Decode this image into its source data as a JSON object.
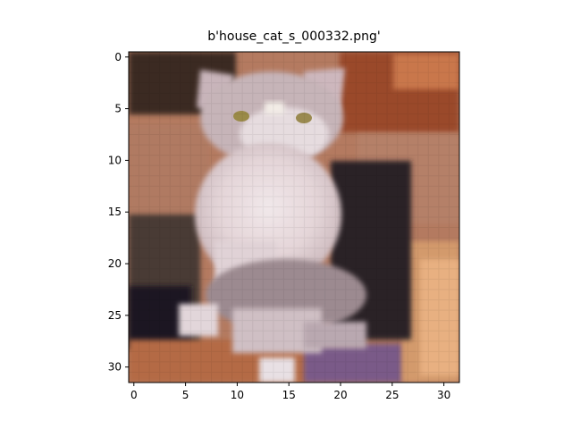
{
  "figure": {
    "title": "b'house_cat_s_000332.png'"
  },
  "image": {
    "description_name": "pixelated-cat-image",
    "grid_size": 32,
    "dominant_colors": {
      "background_brown": "#b0735a",
      "cat_white": "#ece2e4",
      "cat_dark": "#2a2024",
      "lavender_accent": "#8a63a6",
      "peach_edge": "#e3a878"
    }
  },
  "axes": {
    "x_ticks": [
      "0",
      "5",
      "10",
      "15",
      "20",
      "25",
      "30"
    ],
    "y_ticks": [
      "0",
      "5",
      "10",
      "15",
      "20",
      "25",
      "30"
    ],
    "xlim": [
      -0.5,
      31.5
    ],
    "ylim": [
      31.5,
      -0.5
    ]
  }
}
